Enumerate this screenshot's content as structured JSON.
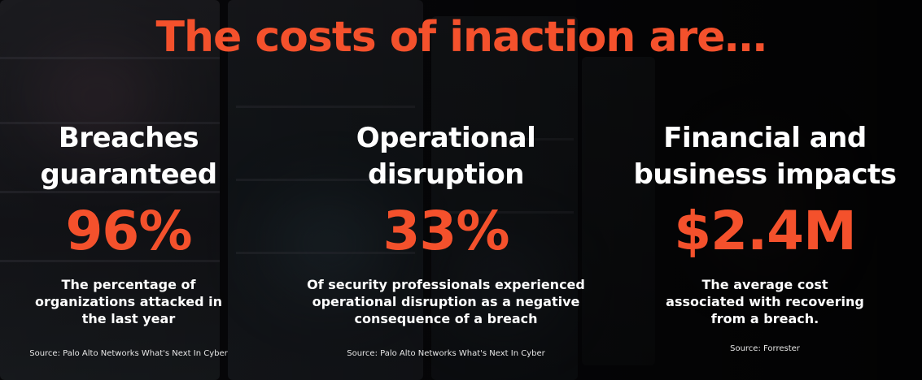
{
  "title": "The costs of inaction are…",
  "columns": [
    {
      "heading_line1": "Breaches",
      "heading_line2": "guaranteed",
      "stat": "96%",
      "desc_line1": "The percentage of",
      "desc_line2": "organizations attacked in",
      "desc_line3": "the last year",
      "source": "Source: Palo Alto Networks What's Next In Cyber"
    },
    {
      "heading_line1": "Operational",
      "heading_line2": "disruption",
      "stat": "33%",
      "desc_line1": "Of security professionals experienced",
      "desc_line2": "operational disruption as a negative",
      "desc_line3": "consequence of a breach",
      "source": "Source: Palo Alto Networks What's Next In Cyber"
    },
    {
      "heading_line1": "Financial and",
      "heading_line2": "business impacts",
      "stat": "$2.4M",
      "desc_line1": "The average cost",
      "desc_line2": "associated with recovering",
      "desc_line3": "from a breach.",
      "source": "Source: Forrester"
    }
  ],
  "colors": {
    "accent": "#f4512c",
    "text": "#ffffff",
    "background": "#0b0b0e"
  }
}
